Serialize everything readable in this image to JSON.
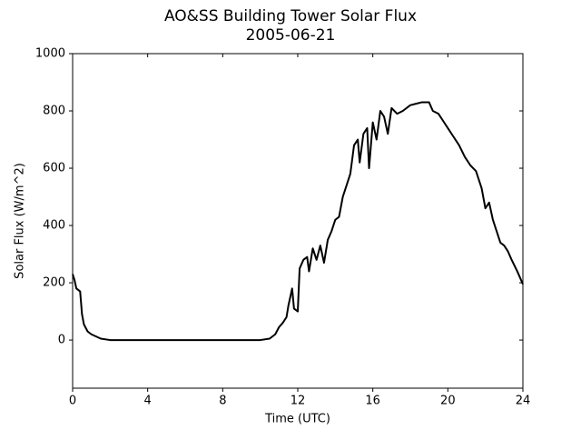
{
  "chart_data": {
    "type": "line",
    "title": "AO&SS Building Tower Solar Flux",
    "subtitle": "2005-06-21",
    "x_label": "Time (UTC)",
    "y_label": "Solar Flux (W/m^2)",
    "xlim": [
      0,
      24
    ],
    "xticks": [
      0,
      4,
      8,
      12,
      16,
      20,
      24
    ],
    "ylim": [
      -168,
      1000
    ],
    "yticks": [
      0,
      200,
      400,
      600,
      800,
      1000
    ],
    "grid": false,
    "series": [
      {
        "color": "#000000",
        "x": [
          0,
          0.1,
          0.2,
          0.3,
          0.4,
          0.5,
          0.6,
          0.8,
          1.0,
          1.5,
          2,
          6,
          10,
          10.5,
          10.8,
          11,
          11.2,
          11.4,
          11.5,
          11.7,
          11.8,
          12,
          12.1,
          12.3,
          12.5,
          12.6,
          12.8,
          13,
          13.2,
          13.4,
          13.6,
          13.8,
          14,
          14.2,
          14.4,
          14.6,
          14.8,
          15,
          15.2,
          15.3,
          15.5,
          15.7,
          15.8,
          16,
          16.2,
          16.4,
          16.6,
          16.8,
          17,
          17.3,
          17.6,
          18,
          18.3,
          18.6,
          19,
          19.2,
          19.5,
          19.8,
          20,
          20.3,
          20.6,
          20.9,
          21.2,
          21.5,
          21.8,
          22,
          22.2,
          22.4,
          22.6,
          22.8,
          23,
          23.2,
          23.4,
          23.7,
          24
        ],
        "values": [
          230,
          210,
          180,
          175,
          170,
          90,
          55,
          30,
          20,
          5,
          0,
          0,
          0,
          5,
          20,
          45,
          60,
          80,
          120,
          180,
          110,
          100,
          250,
          280,
          290,
          240,
          320,
          280,
          330,
          270,
          350,
          380,
          420,
          430,
          500,
          540,
          580,
          680,
          700,
          620,
          720,
          740,
          600,
          760,
          700,
          800,
          780,
          720,
          810,
          790,
          800,
          820,
          825,
          830,
          830,
          800,
          790,
          760,
          740,
          710,
          680,
          640,
          610,
          590,
          530,
          460,
          480,
          420,
          380,
          340,
          330,
          310,
          280,
          240,
          195
        ]
      }
    ]
  }
}
